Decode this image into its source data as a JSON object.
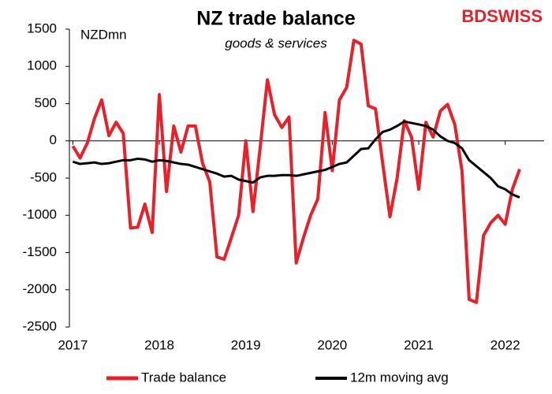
{
  "chart_data": {
    "type": "line",
    "title": "NZ trade balance",
    "subtitle": "goods & services",
    "unit_label": "NZDmn",
    "logo": "BDSWISS",
    "x": [
      2017.0,
      2017.083,
      2017.167,
      2017.25,
      2017.333,
      2017.417,
      2017.5,
      2017.583,
      2017.667,
      2017.75,
      2017.833,
      2017.917,
      2018.0,
      2018.083,
      2018.167,
      2018.25,
      2018.333,
      2018.417,
      2018.5,
      2018.583,
      2018.667,
      2018.75,
      2018.833,
      2018.917,
      2019.0,
      2019.083,
      2019.167,
      2019.25,
      2019.333,
      2019.417,
      2019.5,
      2019.583,
      2019.667,
      2019.75,
      2019.833,
      2019.917,
      2020.0,
      2020.083,
      2020.167,
      2020.25,
      2020.333,
      2020.417,
      2020.5,
      2020.583,
      2020.667,
      2020.75,
      2020.833,
      2020.917,
      2021.0,
      2021.083,
      2021.167,
      2021.25,
      2021.333,
      2021.417,
      2021.5,
      2021.583,
      2021.667,
      2021.75,
      2021.833,
      2021.917,
      2022.0,
      2022.083,
      2022.167
    ],
    "series": [
      {
        "name": "Trade balance",
        "color": "#e8202a",
        "width": 4,
        "values": [
          -70,
          -230,
          -30,
          300,
          550,
          70,
          250,
          100,
          -1170,
          -1160,
          -850,
          -1230,
          620,
          -680,
          200,
          -150,
          200,
          200,
          -300,
          -550,
          -1560,
          -1590,
          -1300,
          -1000,
          0,
          -950,
          -80,
          820,
          350,
          180,
          320,
          -1640,
          -1300,
          -1000,
          -780,
          380,
          -400,
          550,
          720,
          1350,
          1300,
          470,
          430,
          -300,
          -1020,
          -500,
          270,
          50,
          -650,
          250,
          50,
          400,
          490,
          220,
          -400,
          -2130,
          -2170,
          -1270,
          -1100,
          -1000,
          -1120,
          -650,
          -380
        ]
      },
      {
        "name": "12m moving avg",
        "color": "#000000",
        "width": 3,
        "values": [
          -280,
          -310,
          -300,
          -290,
          -310,
          -300,
          -280,
          -260,
          -260,
          -240,
          -250,
          -280,
          -260,
          -270,
          -290,
          -310,
          -320,
          -350,
          -380,
          -410,
          -440,
          -480,
          -470,
          -520,
          -540,
          -560,
          -490,
          -470,
          -470,
          -460,
          -460,
          -470,
          -450,
          -430,
          -410,
          -390,
          -350,
          -310,
          -290,
          -200,
          -110,
          -100,
          20,
          120,
          150,
          200,
          260,
          240,
          220,
          200,
          150,
          60,
          0,
          -30,
          -100,
          -260,
          -340,
          -420,
          -500,
          -610,
          -650,
          -720,
          -760
        ]
      }
    ],
    "xlim": [
      2016.96,
      2022.45
    ],
    "xticks": [
      2017,
      2018,
      2019,
      2020,
      2021,
      2022
    ],
    "ylim": [
      -2500,
      1500
    ],
    "yticks": [
      -2500,
      -2000,
      -1500,
      -1000,
      -500,
      0,
      500,
      1000,
      1500
    ],
    "grid": false,
    "legend": "bottom"
  }
}
